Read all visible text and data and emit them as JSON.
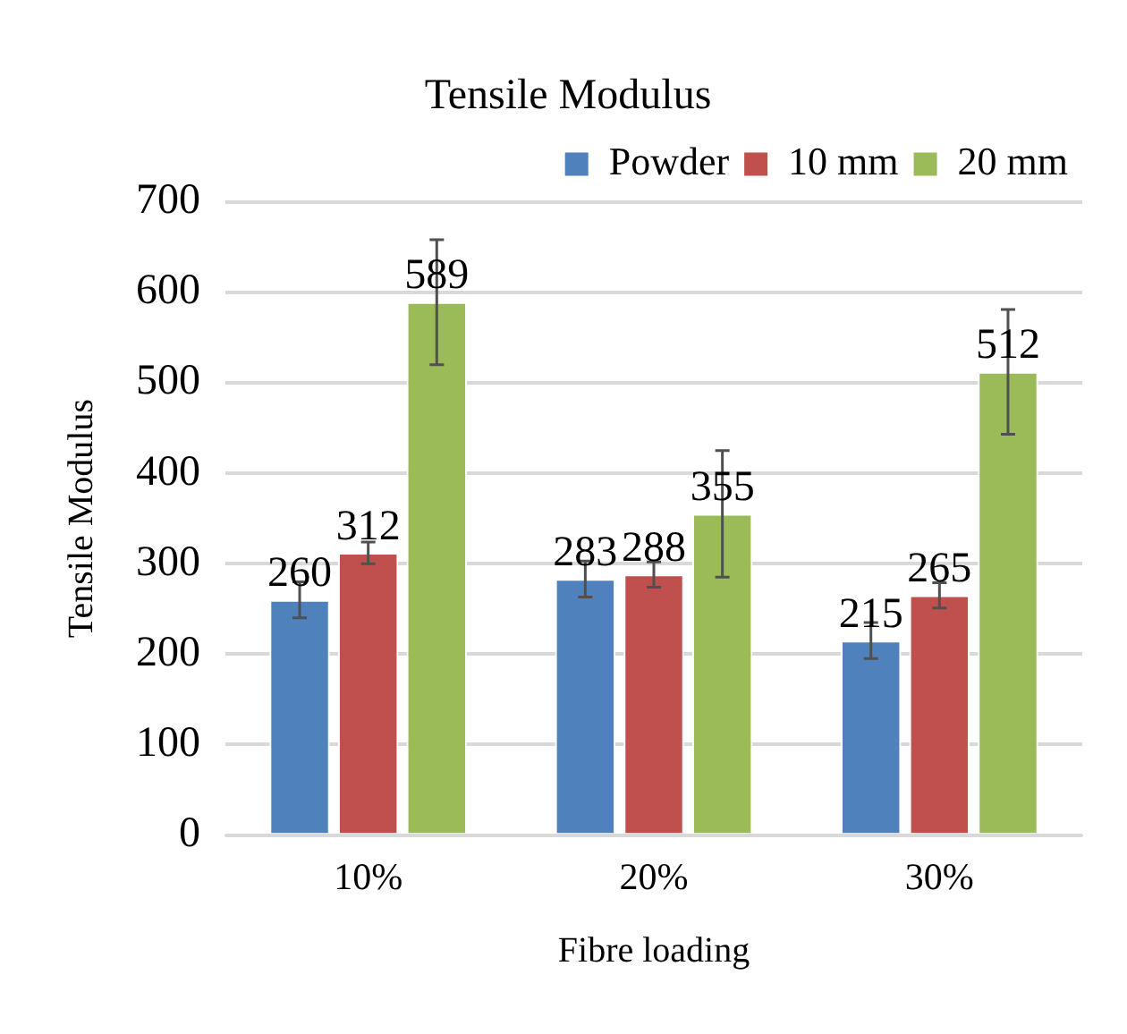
{
  "chart_data": {
    "type": "bar",
    "title": "Tensile Modulus",
    "xlabel": "Fibre loading",
    "ylabel": "Tensile Modulus",
    "categories": [
      "10%",
      "20%",
      "30%"
    ],
    "series": [
      {
        "name": "Powder",
        "color": "#4f81bd",
        "values": [
          260,
          283,
          215
        ],
        "errors": [
          20,
          20,
          20
        ]
      },
      {
        "name": "10 mm",
        "color": "#c0504d",
        "values": [
          312,
          288,
          265
        ],
        "errors": [
          12,
          14,
          14
        ]
      },
      {
        "name": "20 mm",
        "color": "#9bbb59",
        "values": [
          589,
          355,
          512
        ],
        "errors": [
          69,
          70,
          69
        ]
      }
    ],
    "ylim": [
      0,
      700
    ],
    "yticks": [
      0,
      100,
      200,
      300,
      400,
      500,
      600,
      700
    ],
    "grid": "y",
    "legend": "top right",
    "data_labels": true
  }
}
